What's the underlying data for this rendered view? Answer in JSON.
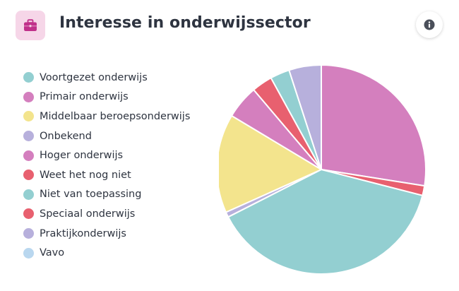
{
  "header": {
    "title": "Interesse in onderwijssector",
    "icon": "briefcase-icon",
    "icon_color": "#c0308a",
    "info_icon": "info-icon"
  },
  "chart_data": {
    "type": "pie",
    "title": "Interesse in onderwijssector",
    "legend_position": "left",
    "series": [
      {
        "name": "Primair onderwijs",
        "value": 27.5,
        "color": "#d47fbe"
      },
      {
        "name": "Weet het nog niet",
        "value": 1.5,
        "color": "#e8606f"
      },
      {
        "name": "Voortgezet onderwijs",
        "value": 38.5,
        "color": "#93cfd1"
      },
      {
        "name": "Praktijkonderwijs",
        "value": 0.8,
        "color": "#b7b0dc"
      },
      {
        "name": "Middelbaar beroepsonderwijs",
        "value": 15.3,
        "color": "#f3e48d"
      },
      {
        "name": "Hoger onderwijs",
        "value": 5.2,
        "color": "#d47fbe"
      },
      {
        "name": "Speciaal onderwijs",
        "value": 3.2,
        "color": "#e8606f"
      },
      {
        "name": "Niet van toepassing",
        "value": 3.0,
        "color": "#93cfd1"
      },
      {
        "name": "Onbekend",
        "value": 5.0,
        "color": "#b7b0dc"
      },
      {
        "name": "Vavo",
        "value": 0.0,
        "color": "#b9d7ef"
      }
    ],
    "legend": [
      {
        "label": "Voortgezet onderwijs",
        "color": "#93cfd1"
      },
      {
        "label": "Primair onderwijs",
        "color": "#d47fbe"
      },
      {
        "label": "Middelbaar beroepsonderwijs",
        "color": "#f3e48d"
      },
      {
        "label": "Onbekend",
        "color": "#b7b0dc"
      },
      {
        "label": "Hoger onderwijs",
        "color": "#d47fbe"
      },
      {
        "label": "Weet het nog niet",
        "color": "#e8606f"
      },
      {
        "label": "Niet van toepassing",
        "color": "#93cfd1"
      },
      {
        "label": "Speciaal onderwijs",
        "color": "#e8606f"
      },
      {
        "label": "Praktijkonderwijs",
        "color": "#b7b0dc"
      },
      {
        "label": "Vavo",
        "color": "#b9d7ef"
      }
    ]
  }
}
